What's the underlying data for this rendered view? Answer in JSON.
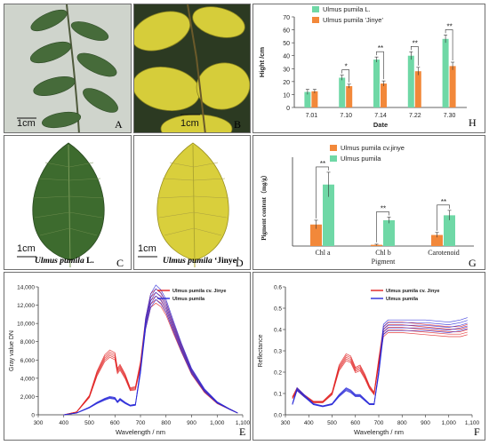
{
  "panels": {
    "a": {
      "letter": "A",
      "scale": "1cm"
    },
    "b": {
      "letter": "B",
      "scale": "1cm"
    },
    "c": {
      "letter": "C",
      "scale": "1cm",
      "caption_species": "Ulmus pumila",
      "caption_suffix": " L."
    },
    "d": {
      "letter": "D",
      "scale": "1cm",
      "caption_species": "Ulmus pumila",
      "caption_suffix": " ‘Jinye’"
    },
    "e": {
      "letter": "E"
    },
    "f": {
      "letter": "F"
    },
    "g": {
      "letter": "G"
    },
    "h": {
      "letter": "H"
    }
  },
  "colors": {
    "green_series": "#6fd8a6",
    "orange_series": "#f2883a",
    "red_series": "#e02020",
    "blue_series": "#2a2ad8",
    "leaf_green": "#3d6b2e",
    "leaf_yellow": "#d9cf3c"
  },
  "chart_data": [
    {
      "panel": "H",
      "type": "bar",
      "title": "",
      "xlabel": "Date",
      "ylabel": "Hight /cm",
      "ylim": [
        0,
        70
      ],
      "yticks": [
        0,
        10,
        20,
        30,
        40,
        50,
        60,
        70
      ],
      "categories": [
        "7.01",
        "7.10",
        "7.14",
        "7.22",
        "7.30"
      ],
      "series": [
        {
          "name": "Ulmus pumila L.",
          "color": "#6fd8a6",
          "values": [
            12,
            23,
            37,
            40,
            53
          ],
          "errors": [
            2,
            2,
            2,
            3,
            3
          ]
        },
        {
          "name": "Ulmus pumila 'Jinye'",
          "color": "#f2883a",
          "values": [
            12.5,
            16.5,
            18.5,
            28,
            32
          ],
          "errors": [
            1.5,
            1.5,
            2,
            3,
            3
          ]
        }
      ],
      "significance": [
        "",
        "*",
        "**",
        "**",
        "**"
      ],
      "legend": "top-left"
    },
    {
      "panel": "G",
      "type": "bar",
      "title": "",
      "xlabel": "Pigment",
      "ylabel": "Pigment content（mg/g）",
      "categories": [
        "Chl a",
        "Chl b",
        "Carotenoid"
      ],
      "series": [
        {
          "name": "Ulmus pumila cv.jinye",
          "color": "#f2883a",
          "values": [
            0.35,
            0.02,
            0.18
          ],
          "errors": [
            0.07,
            0.01,
            0.04
          ]
        },
        {
          "name": "Ulmus pumila",
          "color": "#6fd8a6",
          "values": [
            1.0,
            0.42,
            0.5
          ],
          "errors": [
            0.2,
            0.05,
            0.08
          ]
        }
      ],
      "significance": [
        "**",
        "**",
        "**"
      ],
      "ylim": [
        0,
        1.3
      ],
      "legend": "top-left"
    },
    {
      "panel": "E",
      "type": "line",
      "title": "",
      "xlabel": "Wavelength / nm",
      "ylabel": "Gray value DN",
      "xlim": [
        300,
        1100
      ],
      "ylim": [
        0,
        14000
      ],
      "xticks": [
        300,
        400,
        500,
        600,
        700,
        800,
        900,
        "1,000",
        "1,100"
      ],
      "yticks": [
        "0",
        "2,000",
        "4,000",
        "6,000",
        "8,000",
        "10,000",
        "12,000",
        "14,000"
      ],
      "series": [
        {
          "name": "Ulmus pumila cv. Jinye",
          "color": "#e02020",
          "x": [
            400,
            450,
            500,
            530,
            560,
            580,
            600,
            610,
            620,
            640,
            660,
            680,
            700,
            720,
            740,
            760,
            780,
            800,
            830,
            860,
            900,
            950,
            1000,
            1050,
            1080
          ],
          "y": [
            0,
            300,
            2000,
            4500,
            6200,
            6700,
            6400,
            4800,
            5200,
            4200,
            2800,
            2900,
            5500,
            10000,
            12500,
            13000,
            12600,
            11600,
            9400,
            7300,
            4700,
            2600,
            1300,
            600,
            200
          ]
        },
        {
          "name": "Ulmus pumila",
          "color": "#2a2ad8",
          "x": [
            400,
            450,
            500,
            530,
            560,
            580,
            600,
            610,
            620,
            640,
            660,
            680,
            700,
            720,
            740,
            760,
            780,
            800,
            830,
            860,
            900,
            950,
            1000,
            1050,
            1080
          ],
          "y": [
            0,
            200,
            800,
            1300,
            1700,
            1900,
            1800,
            1400,
            1700,
            1300,
            1000,
            1100,
            4800,
            10000,
            12500,
            13400,
            12900,
            11900,
            9600,
            7400,
            4800,
            2700,
            1350,
            600,
            200
          ]
        }
      ],
      "legend": "top-right"
    },
    {
      "panel": "F",
      "type": "line",
      "title": "",
      "xlabel": "Wavelength / nm",
      "ylabel": "Reflectance",
      "xlim": [
        300,
        1100
      ],
      "ylim": [
        0,
        0.6
      ],
      "xticks": [
        300,
        400,
        500,
        600,
        700,
        800,
        900,
        "1,000",
        "1,100"
      ],
      "yticks": [
        "0.0",
        "0.1",
        "0.2",
        "0.3",
        "0.4",
        "0.5",
        "0.6"
      ],
      "series": [
        {
          "name": "Ulmus pumila cv. Jinye",
          "color": "#e02020",
          "x": [
            330,
            350,
            380,
            420,
            460,
            500,
            530,
            560,
            580,
            600,
            620,
            640,
            660,
            680,
            700,
            720,
            740,
            800,
            900,
            1000,
            1050,
            1080
          ],
          "y": [
            0.08,
            0.12,
            0.09,
            0.06,
            0.06,
            0.1,
            0.22,
            0.27,
            0.26,
            0.21,
            0.22,
            0.18,
            0.13,
            0.1,
            0.25,
            0.39,
            0.41,
            0.41,
            0.4,
            0.39,
            0.39,
            0.4
          ]
        },
        {
          "name": "Ulmus pumila",
          "color": "#2a2ad8",
          "x": [
            330,
            350,
            380,
            420,
            460,
            500,
            530,
            560,
            580,
            600,
            620,
            640,
            660,
            680,
            700,
            720,
            740,
            800,
            900,
            1000,
            1050,
            1080
          ],
          "y": [
            0.05,
            0.12,
            0.09,
            0.05,
            0.04,
            0.05,
            0.09,
            0.12,
            0.11,
            0.09,
            0.09,
            0.07,
            0.05,
            0.05,
            0.2,
            0.4,
            0.42,
            0.42,
            0.42,
            0.41,
            0.42,
            0.43
          ]
        }
      ],
      "legend": "top-center"
    }
  ]
}
